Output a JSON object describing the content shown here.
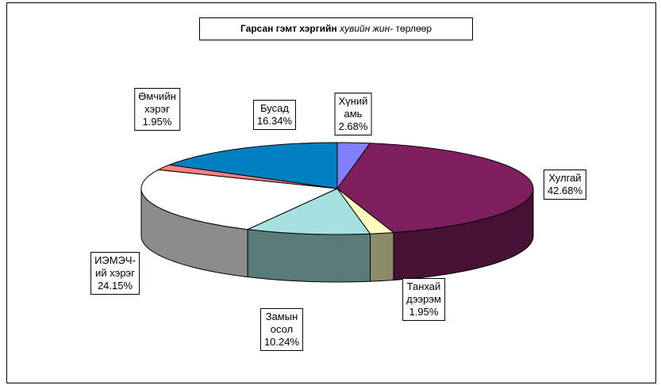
{
  "chart_data": {
    "type": "pie3d",
    "title": [
      "Гарсан гэмт хэргийн",
      "хувийн жин-",
      "төрлөөр"
    ],
    "categories": [
      "Хүний амь",
      "Хулгай",
      "Танхай дээрэм",
      "Замын осол",
      "ИЭМЭЧ-ий хэрэг",
      "Өмчийн хэрэг",
      "Бусад"
    ],
    "values": [
      2.68,
      42.68,
      1.95,
      10.24,
      24.15,
      1.95,
      16.34
    ],
    "value_labels": [
      "2.68%",
      "42.68%",
      "1.95%",
      "10.24%",
      "24.15%",
      "1.95%",
      "16.34%"
    ],
    "colors": [
      "#8080ff",
      "#7f1f5f",
      "#ffffc0",
      "#a6e0e0",
      "#ffffff",
      "#ff8080",
      "#0080c0"
    ]
  }
}
